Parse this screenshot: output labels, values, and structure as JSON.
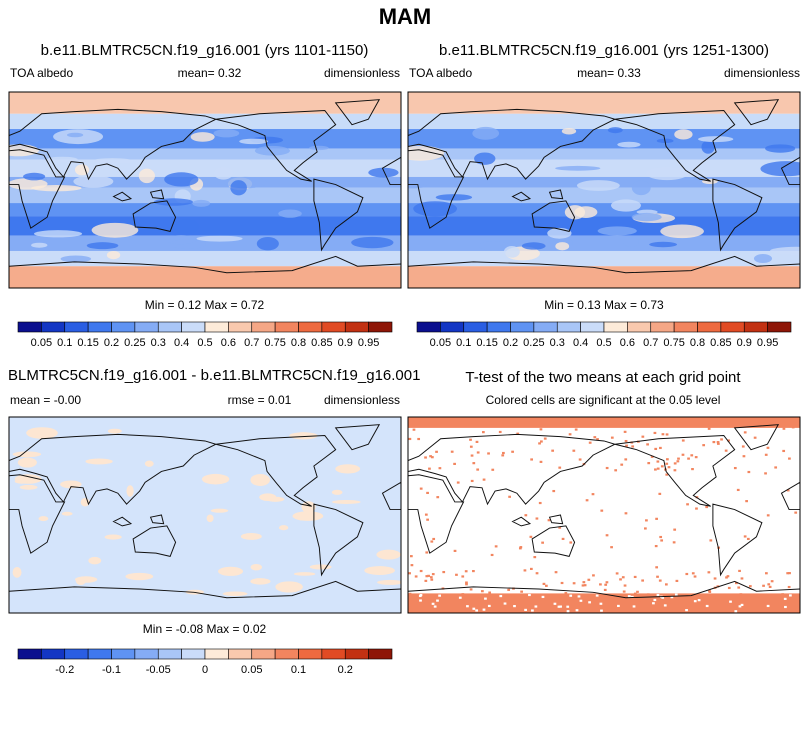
{
  "header": {
    "title": "MAM"
  },
  "panels": [
    {
      "title": "b.e11.BLMTRC5CN.f19_g16.001 (yrs 1101-1150)",
      "left": "TOA albedo",
      "center": "mean=   0.32",
      "right": "dimensionless",
      "min_max": "Min =   0.12 Max =   0.72"
    },
    {
      "title": "b.e11.BLMTRC5CN.f19_g16.001 (yrs 1251-1300)",
      "left": "TOA albedo",
      "center": "mean=   0.33",
      "right": "dimensionless",
      "min_max": "Min =   0.13 Max =   0.73"
    },
    {
      "title": "BLMTRC5CN.f19_g16.001 - b.e11.BLMTRC5CN.f19_g16.001",
      "left": "mean = -0.00",
      "center": "rmse =   0.01",
      "right": "dimensionless",
      "min_max": "Min = -0.08 Max =   0.02"
    },
    {
      "title": "T-test of the two means at each grid point",
      "subtitle": "Colored cells are significant at the 0.05 level"
    }
  ],
  "colorbars": [
    {
      "labels": [
        "0.05",
        "0.1",
        "0.15",
        "0.2",
        "0.25",
        "0.3",
        "0.4",
        "0.5",
        "0.6",
        "0.7",
        "0.75",
        "0.8",
        "0.85",
        "0.9",
        "0.95"
      ]
    },
    {
      "labels": [
        "0.05",
        "0.1",
        "0.15",
        "0.2",
        "0.25",
        "0.3",
        "0.4",
        "0.5",
        "0.6",
        "0.7",
        "0.75",
        "0.8",
        "0.85",
        "0.9",
        "0.95"
      ]
    },
    {
      "labels": [
        "-0.2",
        "-0.1",
        "-0.05",
        "0",
        "0.05",
        "0.1",
        "0.2"
      ]
    }
  ]
}
